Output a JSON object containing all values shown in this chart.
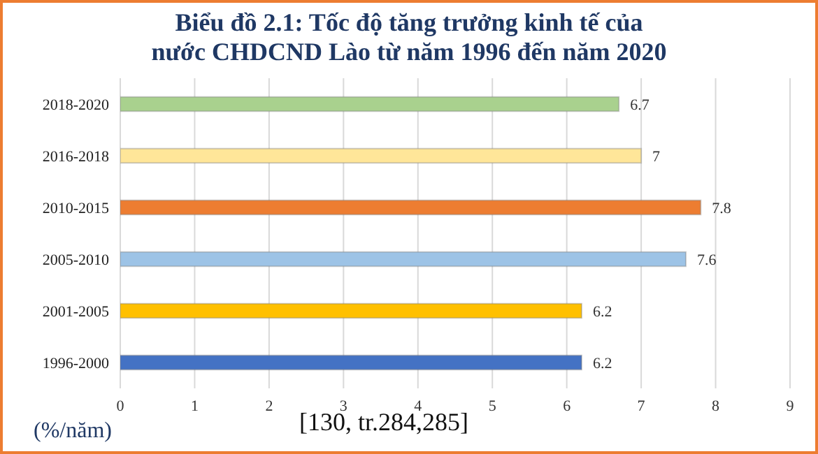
{
  "chart_data": {
    "type": "bar",
    "orientation": "horizontal",
    "title": "Biểu đồ 2.1: Tốc độ tăng trưởng kinh tế của\nnước CHDCND Lào từ năm 1996 đến năm 2020",
    "categories": [
      "2018-2020",
      "2016-2018",
      "2010-2015",
      "2005-2010",
      "2001-2005",
      "1996-2000"
    ],
    "values": [
      6.7,
      7,
      7.8,
      7.6,
      6.2,
      6.2
    ],
    "colors": [
      "#a9d18e",
      "#ffe699",
      "#ed7d31",
      "#9dc3e6",
      "#ffc000",
      "#4472c4"
    ],
    "xlim": [
      0,
      9
    ],
    "xticks": [
      0,
      1,
      2,
      3,
      4,
      5,
      6,
      7,
      8,
      9
    ],
    "grid": "x",
    "data_labels": true,
    "xlabel": "(%/năm)",
    "annotations": [
      "[130, tr.284,285]"
    ]
  }
}
